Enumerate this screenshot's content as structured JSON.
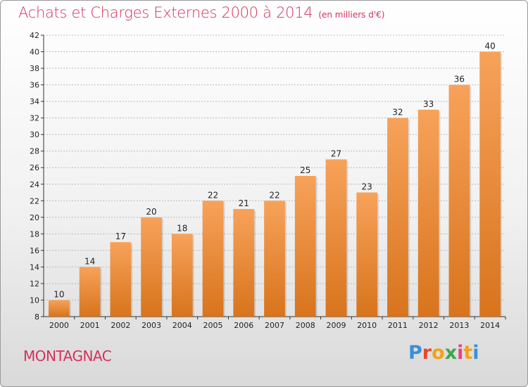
{
  "header": {
    "title": "Achats et Charges Externes 2000 à 2014",
    "unit": "(en milliers d'€)"
  },
  "footer": {
    "commune": "MONTAGNAC",
    "logo_letters": [
      "P",
      "r",
      "o",
      "x",
      "i",
      "t",
      "i"
    ],
    "logo_colors": [
      "#3b8fd6",
      "#e8492b",
      "#f2a21b",
      "#3ca84a",
      "#e83f8a",
      "#f2a21b",
      "#3b8fd6"
    ]
  },
  "colors": {
    "bar_top": "#f7a25a",
    "bar_bottom": "#d8741c",
    "grid": "#bbbbbb",
    "title": "#d6305c"
  },
  "chart_data": {
    "type": "bar",
    "title": "Achats et Charges Externes 2000 à 2014",
    "xlabel": "",
    "ylabel": "",
    "categories": [
      "2000",
      "2001",
      "2002",
      "2003",
      "2004",
      "2005",
      "2006",
      "2007",
      "2008",
      "2009",
      "2010",
      "2011",
      "2012",
      "2013",
      "2014"
    ],
    "values": [
      10,
      14,
      17,
      20,
      18,
      22,
      21,
      22,
      25,
      27,
      23,
      32,
      33,
      36,
      40
    ],
    "ylim": [
      8,
      42
    ],
    "yticks": [
      8,
      10,
      12,
      14,
      16,
      18,
      20,
      22,
      24,
      26,
      28,
      30,
      32,
      34,
      36,
      38,
      40,
      42
    ],
    "grid": true,
    "data_labels": true
  }
}
